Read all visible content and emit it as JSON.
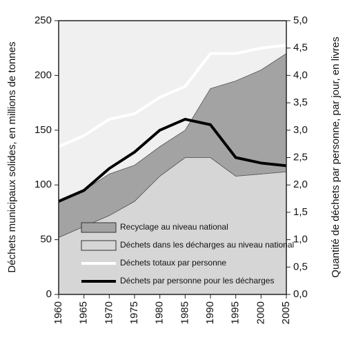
{
  "chart_data": {
    "type": "area",
    "y_label": "Déchets municipaux solides, en millions de tonnes",
    "y2_label": "Quantité de déchets par personne, par jour, en livres",
    "x": [
      1960,
      1965,
      1970,
      1975,
      1980,
      1985,
      1990,
      1995,
      2000,
      2005
    ],
    "xlim": [
      1960,
      2005
    ],
    "xticks": [
      1960,
      1965,
      1970,
      1975,
      1980,
      1985,
      1990,
      1995,
      2000,
      2005
    ],
    "ylim": [
      0,
      250
    ],
    "yticks": [
      0,
      50,
      100,
      150,
      200,
      250
    ],
    "y2lim": [
      0,
      5
    ],
    "y2ticks": [
      {
        "value": 0,
        "label": "0,0"
      },
      {
        "value": 0.5,
        "label": "0,5"
      },
      {
        "value": 1,
        "label": "1,0"
      },
      {
        "value": 1.5,
        "label": "1,5"
      },
      {
        "value": 2,
        "label": "2,0"
      },
      {
        "value": 2.5,
        "label": "2,5"
      },
      {
        "value": 3,
        "label": "3,0"
      },
      {
        "value": 3.5,
        "label": "3,5"
      },
      {
        "value": 4,
        "label": "4,0"
      },
      {
        "value": 4.5,
        "label": "4,5"
      },
      {
        "value": 5,
        "label": "5,0"
      }
    ],
    "series": [
      {
        "name": "Recyclage au niveau national",
        "kind": "area",
        "color": "#a3a3a3",
        "values": [
          33,
          33,
          38,
          33,
          27,
          25,
          63,
          87,
          95,
          108
        ]
      },
      {
        "name": "Déchets dans les décharges au niveau national",
        "kind": "area",
        "color": "#d6d6d6",
        "values": [
          52,
          62,
          72,
          85,
          108,
          125,
          125,
          108,
          110,
          112
        ]
      },
      {
        "name": "Déchets totaux par personne",
        "kind": "line",
        "axis": "y2",
        "color": "#ffffff",
        "values": [
          2.7,
          2.9,
          3.2,
          3.3,
          3.6,
          3.8,
          4.4,
          4.4,
          4.5,
          4.55
        ]
      },
      {
        "name": "Déchets par personne pour les décharges",
        "kind": "line",
        "axis": "y2",
        "color": "#000000",
        "values": [
          1.7,
          1.9,
          2.3,
          2.6,
          3.0,
          3.2,
          3.1,
          2.5,
          2.4,
          2.35
        ]
      }
    ]
  }
}
